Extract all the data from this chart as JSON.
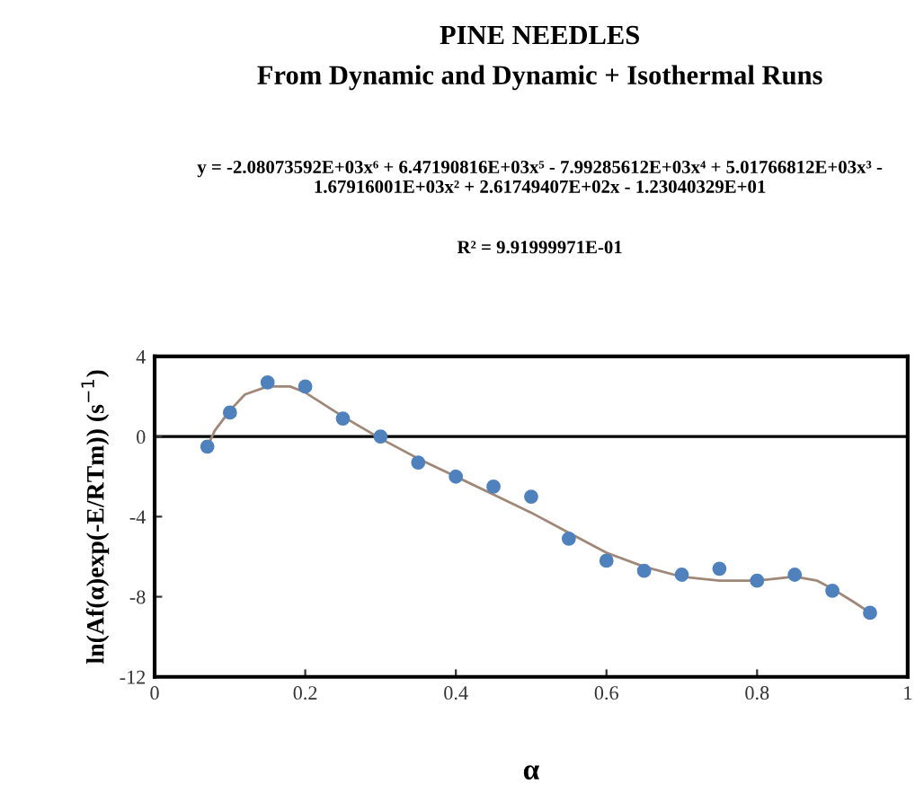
{
  "chart_data": {
    "type": "scatter",
    "title": "PINE NEEDLES",
    "subtitle": "From Dynamic and Dynamic + Isothermal Runs",
    "xlabel": "α",
    "ylabel": "ln(Af(α)exp(-E/RTm)) (s$^{−1}$)",
    "annotations": [
      "y = -2.08073592E+03x⁶ + 6.47190816E+03x⁵ - 7.99285612E+03x⁴ + 5.01766812E+03x³ - 1.67916001E+03x² + 2.61749407E+02x - 1.23040329E+01",
      "R² = 9.91999971E-01"
    ],
    "series": [
      {
        "color": "#4f81bd",
        "marker": "circle",
        "x": [
          0.07,
          0.1,
          0.15,
          0.2,
          0.25,
          0.3,
          0.35,
          0.4,
          0.45,
          0.5,
          0.55,
          0.6,
          0.65,
          0.7,
          0.75,
          0.8,
          0.85,
          0.9,
          0.95
        ],
        "values": [
          -0.5,
          1.2,
          2.7,
          2.5,
          0.9,
          0,
          -1.3,
          -2.0,
          -2.5,
          -3.0,
          -5.1,
          -6.2,
          -6.7,
          -6.9,
          -6.6,
          -7.2,
          -6.9,
          -7.7,
          -8.8
        ]
      },
      {
        "type": "line",
        "color": "#a08878",
        "marker": "none",
        "line_style": "solid",
        "x": [
          0.07,
          0.08,
          0.1,
          0.12,
          0.15,
          0.18,
          0.2,
          0.25,
          0.3,
          0.35,
          0.4,
          0.45,
          0.5,
          0.55,
          0.6,
          0.65,
          0.7,
          0.75,
          0.8,
          0.85,
          0.88,
          0.9,
          0.93,
          0.95
        ],
        "values": [
          -0.5,
          0.3,
          1.3,
          2.1,
          2.5,
          2.5,
          2.2,
          1.0,
          -0.1,
          -1.1,
          -2.0,
          -2.9,
          -3.8,
          -4.8,
          -5.8,
          -6.5,
          -7.0,
          -7.2,
          -7.2,
          -7.0,
          -7.2,
          -7.6,
          -8.3,
          -8.8
        ]
      }
    ],
    "ref_lines": [
      {
        "axis": "y",
        "value": 0,
        "color": "#000000",
        "line_style": "solid"
      }
    ],
    "xlim": [
      0,
      1
    ],
    "xticks": [
      0,
      0.2,
      0.4,
      0.6,
      0.8,
      1
    ],
    "ylim": [
      -12,
      4
    ],
    "yticks": [
      -12,
      -8,
      -4,
      0,
      4
    ],
    "grid": false,
    "legend": false
  }
}
